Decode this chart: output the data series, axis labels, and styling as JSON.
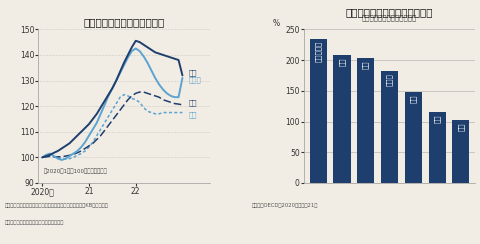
{
  "left_title": "世界で住宅価格の調整が進む",
  "left_note": "（2020年1月＝100として指数化）",
  "left_source1": "（出所）米連邦住宅金融庁、カナダ・テラネット、韓国・KB国民銀行、",
  "left_source2": "　豪コアロジック。豪・カナダは主要都市",
  "right_title": "北欧や韓国は家計債務が大きい",
  "right_subtitle": "（可処分所得に対する割合）",
  "right_source": "（出所）OECD、2020年または21年",
  "ylim_left": [
    90,
    150
  ],
  "yticks_left": [
    90,
    100,
    110,
    120,
    130,
    140,
    150
  ],
  "xtick_positions": [
    0,
    12,
    24
  ],
  "xtick_labels": [
    "2020年",
    "21",
    "22"
  ],
  "bar_categories": [
    "ノルウェー",
    "韓国",
    "豪州",
    "カナダ",
    "英国",
    "日本",
    "米国"
  ],
  "bar_values": [
    235,
    208,
    204,
    182,
    148,
    115,
    102
  ],
  "bar_color": "#1e3f6e",
  "ylim_right": [
    0,
    250
  ],
  "yticks_right": [
    0,
    50,
    100,
    150,
    200,
    250
  ],
  "n": 37,
  "us_data": [
    100.0,
    100.5,
    101.0,
    101.8,
    102.5,
    103.5,
    104.5,
    105.5,
    107.0,
    108.5,
    110.0,
    111.5,
    113.0,
    115.0,
    117.0,
    119.5,
    122.0,
    124.5,
    127.0,
    130.0,
    133.5,
    137.0,
    140.0,
    143.0,
    145.5,
    145.0,
    144.0,
    143.0,
    142.0,
    141.0,
    140.5,
    140.0,
    139.5,
    139.0,
    138.5,
    138.0,
    132.0
  ],
  "canada_data": [
    100.0,
    101.0,
    101.5,
    100.5,
    99.5,
    99.0,
    99.5,
    100.5,
    101.5,
    102.5,
    104.0,
    106.0,
    108.5,
    111.0,
    113.5,
    117.0,
    120.5,
    124.0,
    127.0,
    130.0,
    133.0,
    136.0,
    139.0,
    141.5,
    142.5,
    141.5,
    139.5,
    137.0,
    134.0,
    131.0,
    128.5,
    126.5,
    125.0,
    124.0,
    123.5,
    123.5,
    131.0
  ],
  "korea_data": [
    100.0,
    100.2,
    100.4,
    100.3,
    100.2,
    100.3,
    100.5,
    100.8,
    101.2,
    101.8,
    102.5,
    103.5,
    104.5,
    105.5,
    107.0,
    108.5,
    110.5,
    112.5,
    114.5,
    116.5,
    118.5,
    120.5,
    122.5,
    124.0,
    125.0,
    125.5,
    125.5,
    125.0,
    124.5,
    124.0,
    123.5,
    122.5,
    122.0,
    121.5,
    121.0,
    120.8,
    120.5
  ],
  "australia_data": [
    100.0,
    100.3,
    100.5,
    100.2,
    99.8,
    99.5,
    99.3,
    99.5,
    100.0,
    100.8,
    101.5,
    102.5,
    104.0,
    106.0,
    108.5,
    111.0,
    113.5,
    116.0,
    118.5,
    121.0,
    123.5,
    124.5,
    124.0,
    123.0,
    122.5,
    121.5,
    119.5,
    118.0,
    117.5,
    117.0,
    117.0,
    117.5,
    117.5,
    117.5,
    117.5,
    117.5,
    117.5
  ],
  "us_color": "#1e3f6e",
  "canada_color": "#5ba3d0",
  "korea_color": "#1e3f6e",
  "australia_color": "#5ba3d0",
  "bg_color": "#f2ede4",
  "label_us": "米国",
  "label_canada": "カナダ",
  "label_korea": "韓国",
  "label_australia": "豪州",
  "ylabel_pct": "%"
}
